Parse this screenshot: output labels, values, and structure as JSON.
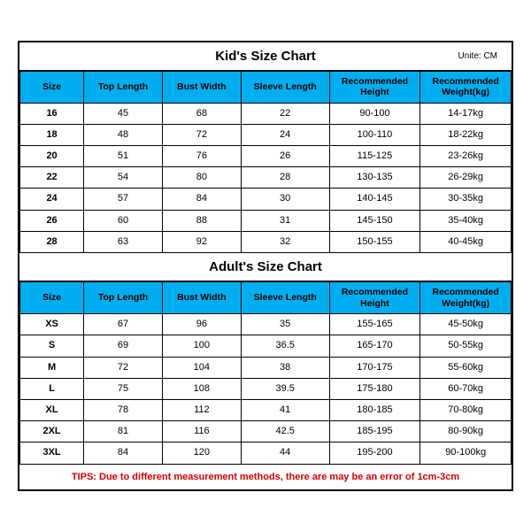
{
  "colors": {
    "header_bg": "#00aeef",
    "border": "#000000",
    "background": "#ffffff",
    "tips_color": "#d90000"
  },
  "unite_label": "Unite: CM",
  "columns": [
    "Size",
    "Top Length",
    "Bust Width",
    "Sleeve Length",
    "Recommended Height",
    "Recommended Weight(kg)"
  ],
  "kids": {
    "title": "Kid's Size Chart",
    "rows": [
      [
        "16",
        "45",
        "68",
        "22",
        "90-100",
        "14-17kg"
      ],
      [
        "18",
        "48",
        "72",
        "24",
        "100-110",
        "18-22kg"
      ],
      [
        "20",
        "51",
        "76",
        "26",
        "115-125",
        "23-26kg"
      ],
      [
        "22",
        "54",
        "80",
        "28",
        "130-135",
        "26-29kg"
      ],
      [
        "24",
        "57",
        "84",
        "30",
        "140-145",
        "30-35kg"
      ],
      [
        "26",
        "60",
        "88",
        "31",
        "145-150",
        "35-40kg"
      ],
      [
        "28",
        "63",
        "92",
        "32",
        "150-155",
        "40-45kg"
      ]
    ]
  },
  "adults": {
    "title": "Adult's Size Chart",
    "rows": [
      [
        "XS",
        "67",
        "96",
        "35",
        "155-165",
        "45-50kg"
      ],
      [
        "S",
        "69",
        "100",
        "36.5",
        "165-170",
        "50-55kg"
      ],
      [
        "M",
        "72",
        "104",
        "38",
        "170-175",
        "55-60kg"
      ],
      [
        "L",
        "75",
        "108",
        "39.5",
        "175-180",
        "60-70kg"
      ],
      [
        "XL",
        "78",
        "112",
        "41",
        "180-185",
        "70-80kg"
      ],
      [
        "2XL",
        "81",
        "116",
        "42.5",
        "185-195",
        "80-90kg"
      ],
      [
        "3XL",
        "84",
        "120",
        "44",
        "195-200",
        "90-100kg"
      ]
    ]
  },
  "tips": "TIPS: Due to different measurement methods, there are may be an error of 1cm-3cm"
}
